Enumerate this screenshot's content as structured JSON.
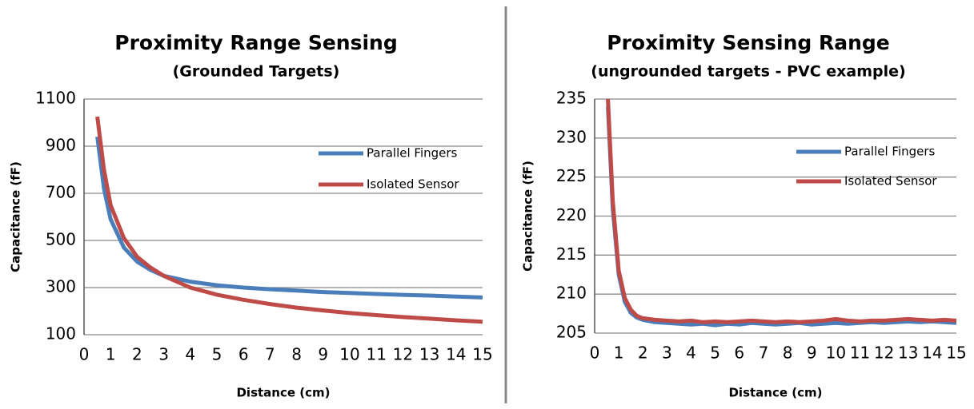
{
  "chart_data": [
    {
      "type": "line",
      "title": "Proximity Range Sensing",
      "subtitle": "(Grounded Targets)",
      "x_label": "Distance (cm)",
      "y_label": "Capacitance (fF)",
      "x": [
        0.5,
        0.75,
        1,
        1.5,
        2,
        2.5,
        3,
        4,
        5,
        6,
        7,
        8,
        9,
        10,
        11,
        12,
        13,
        14,
        15
      ],
      "series": [
        {
          "name": "Parallel Fingers",
          "color": "#4a7ebb",
          "values": [
            940,
            720,
            590,
            470,
            410,
            375,
            350,
            325,
            310,
            300,
            293,
            287,
            281,
            277,
            273,
            269,
            266,
            262,
            258
          ]
        },
        {
          "name": "Isolated Sensor",
          "color": "#be4b48",
          "values": [
            1025,
            800,
            650,
            510,
            430,
            385,
            350,
            300,
            270,
            248,
            230,
            215,
            203,
            192,
            183,
            175,
            168,
            161,
            155
          ]
        }
      ],
      "xlim": [
        0,
        15
      ],
      "xticks": [
        0,
        1,
        2,
        3,
        4,
        5,
        6,
        7,
        8,
        9,
        10,
        11,
        12,
        13,
        14,
        15
      ],
      "ylim": [
        100,
        1100
      ],
      "yticks": [
        100,
        300,
        500,
        700,
        900,
        1100
      ],
      "grid": true,
      "legend": "right"
    },
    {
      "type": "line",
      "title": "Proximity Sensing Range",
      "subtitle": "(ungrounded targets - PVC example)",
      "x_label": "Distance (cm)",
      "y_label": "Capacitance (fF)",
      "x": [
        0.55,
        0.75,
        1,
        1.25,
        1.5,
        1.75,
        2,
        2.5,
        3,
        3.5,
        4,
        4.5,
        5,
        5.5,
        6,
        6.5,
        7,
        7.5,
        8,
        8.5,
        9,
        9.5,
        10,
        10.5,
        11,
        11.5,
        12,
        12.5,
        13,
        13.5,
        14,
        14.5,
        15
      ],
      "series": [
        {
          "name": "Parallel Fingers",
          "color": "#4a7ebb",
          "values": [
            234,
            221,
            212.5,
            209,
            207.6,
            207,
            206.7,
            206.4,
            206.3,
            206.2,
            206.1,
            206.2,
            206.0,
            206.2,
            206.1,
            206.3,
            206.2,
            206.1,
            206.2,
            206.3,
            206.1,
            206.2,
            206.3,
            206.2,
            206.3,
            206.4,
            206.3,
            206.4,
            206.5,
            206.4,
            206.5,
            206.4,
            206.3
          ]
        },
        {
          "name": "Isolated Sensor",
          "color": "#be4b48",
          "values": [
            235,
            222,
            213,
            209.5,
            208,
            207.2,
            206.9,
            206.7,
            206.6,
            206.5,
            206.6,
            206.4,
            206.5,
            206.4,
            206.5,
            206.6,
            206.5,
            206.4,
            206.5,
            206.4,
            206.5,
            206.6,
            206.8,
            206.6,
            206.5,
            206.6,
            206.6,
            206.7,
            206.8,
            206.7,
            206.6,
            206.7,
            206.6
          ]
        }
      ],
      "xlim": [
        0,
        15
      ],
      "xticks": [
        0,
        1,
        2,
        3,
        4,
        5,
        6,
        7,
        8,
        9,
        10,
        11,
        12,
        13,
        14,
        15
      ],
      "ylim": [
        205,
        235
      ],
      "yticks": [
        205,
        210,
        215,
        220,
        225,
        230,
        235
      ],
      "grid": true,
      "legend": "right"
    }
  ]
}
